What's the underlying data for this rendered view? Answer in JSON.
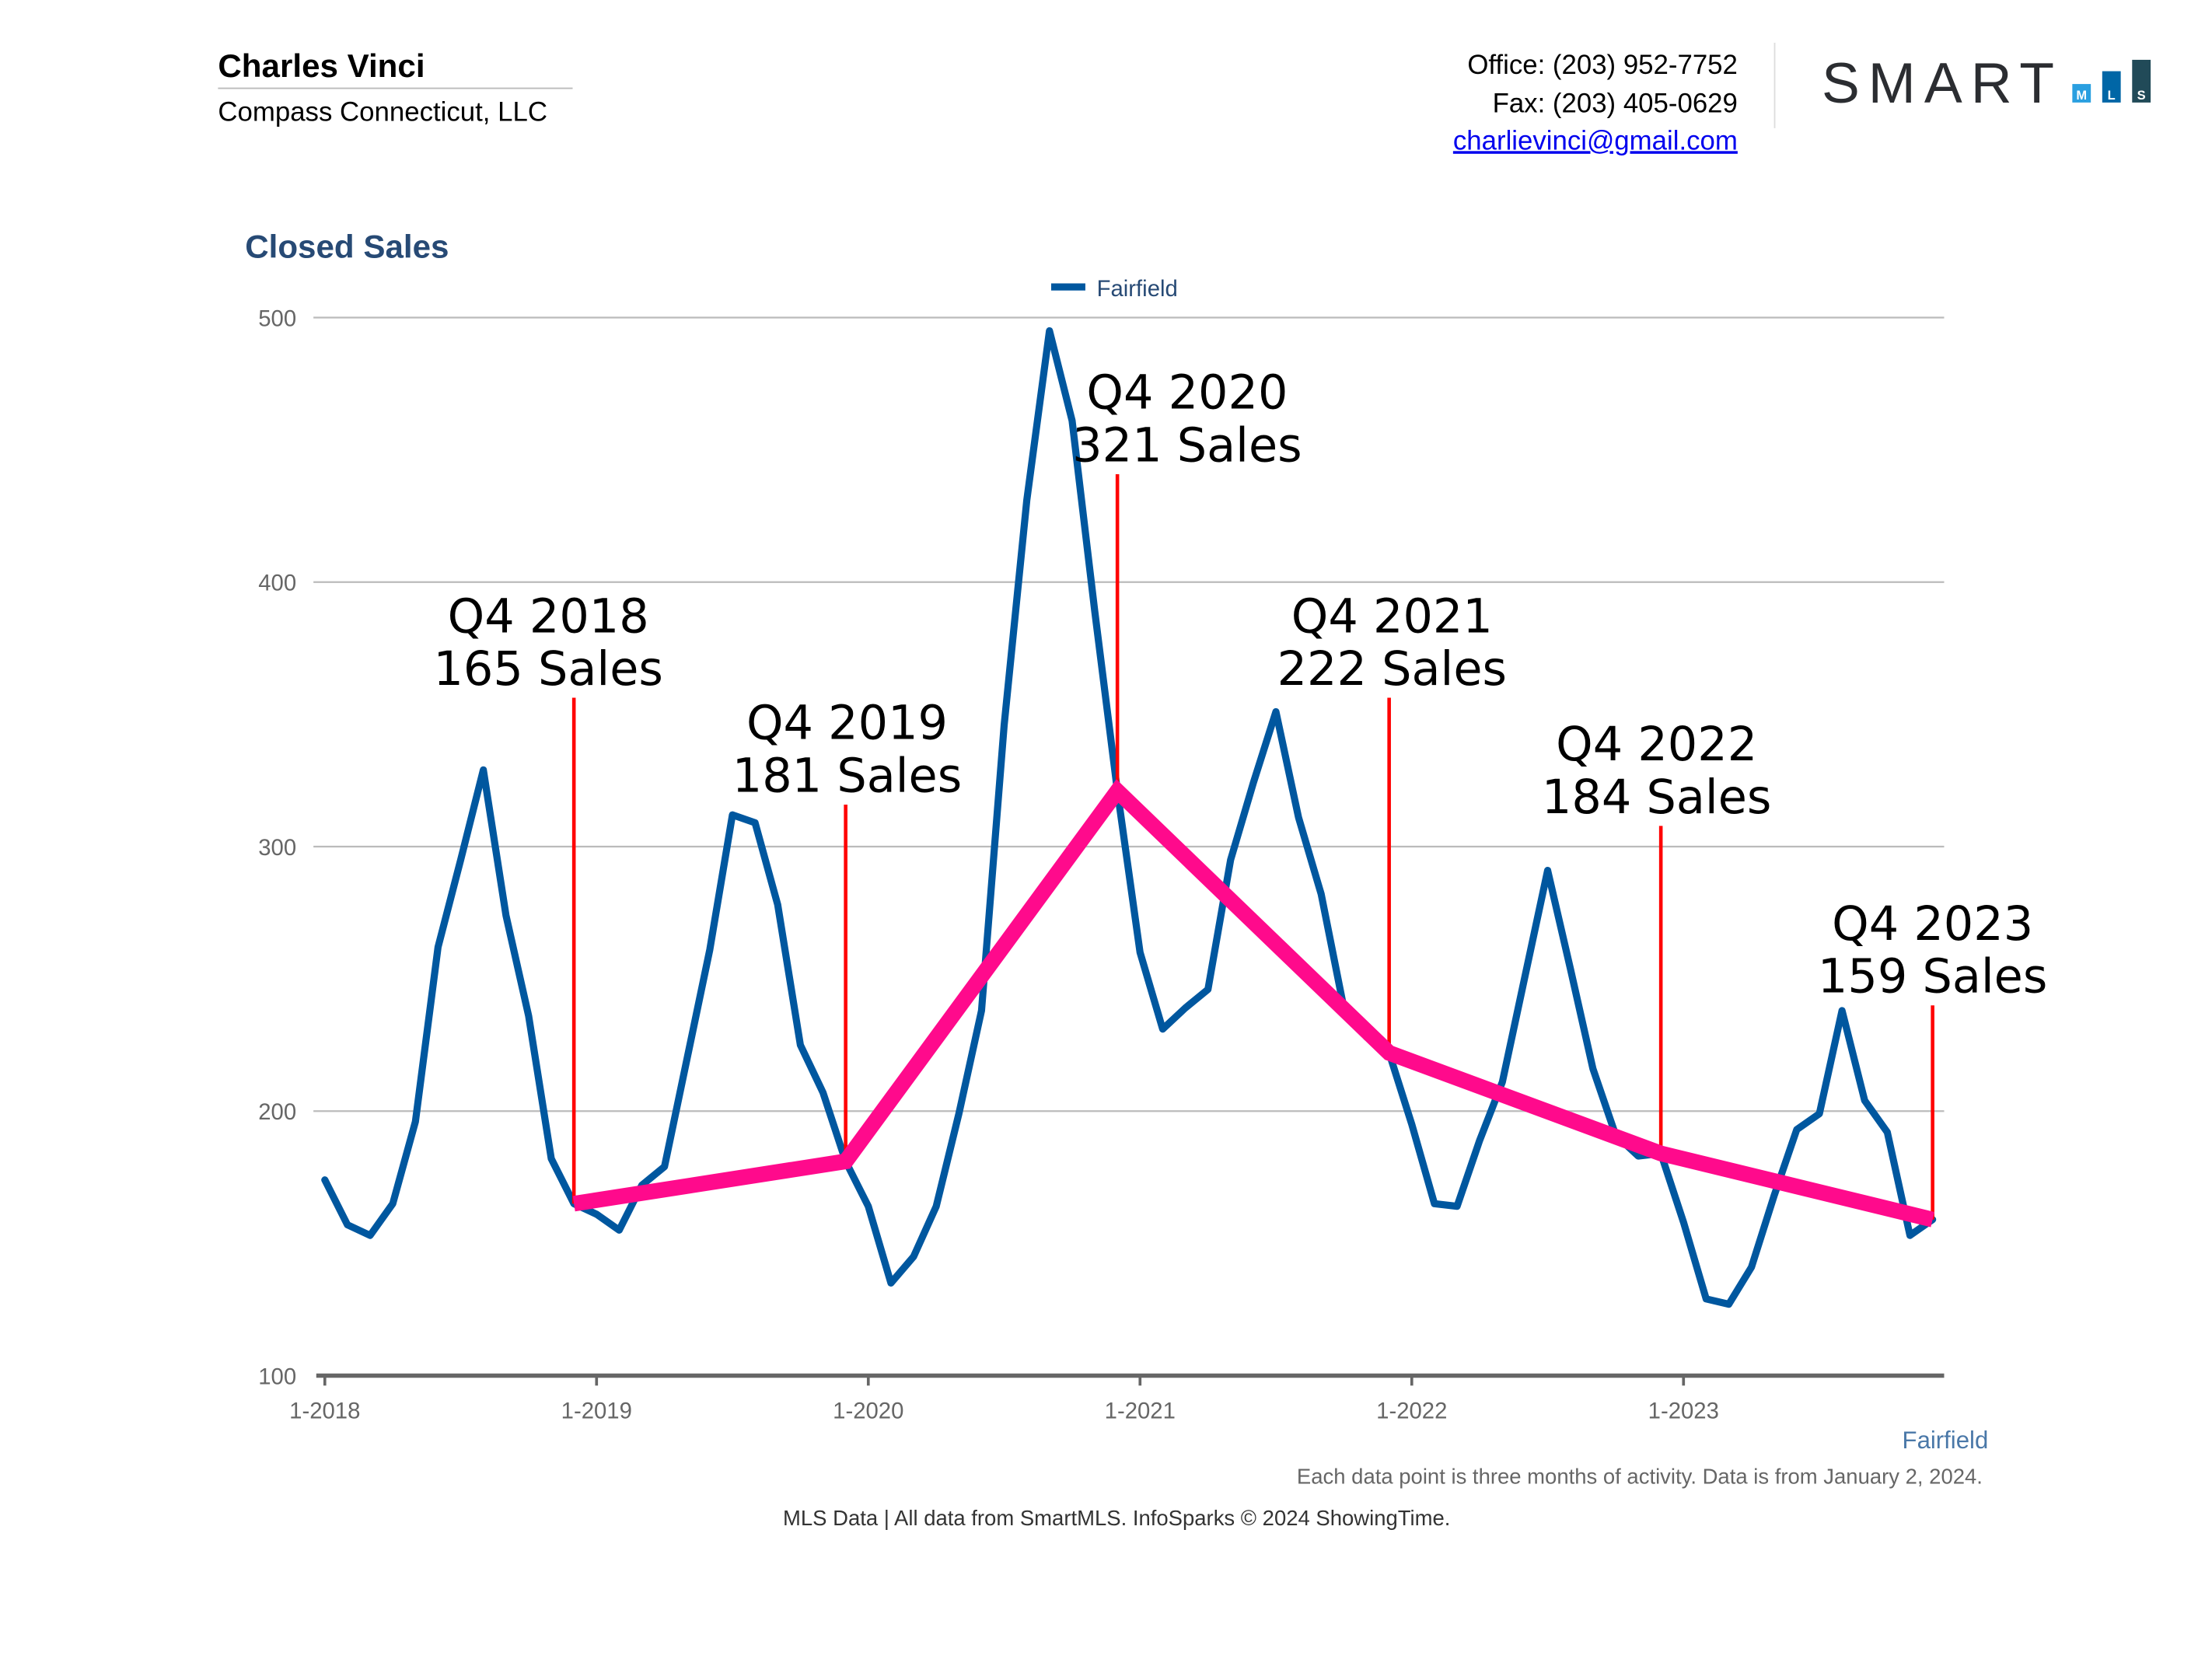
{
  "header": {
    "agent_name": "Charles Vinci",
    "company": "Compass Connecticut, LLC",
    "office": "Office: (203) 952-7752",
    "fax": "Fax: (203) 405-0629",
    "email": "charlievinci@gmail.com",
    "logo": {
      "text": "SMART",
      "boxes": [
        "M",
        "L",
        "S"
      ],
      "colors": [
        "#2b2d31",
        "#2a9fe0",
        "#0066a6",
        "#214a58"
      ]
    }
  },
  "footer": {
    "note": "Each data point is three months of activity. Data is from January 2, 2024.",
    "credit": "MLS Data | All data from SmartMLS. InfoSparks © 2024 ShowingTime."
  },
  "chart_data": {
    "type": "line",
    "title": "Closed Sales",
    "xlabel": "",
    "ylabel": "",
    "ylim": [
      100,
      500
    ],
    "yticks": [
      100,
      200,
      300,
      400,
      500
    ],
    "xticks": [
      "1-2018",
      "1-2019",
      "1-2020",
      "1-2021",
      "1-2022",
      "1-2023"
    ],
    "grid": true,
    "legend": {
      "placement": "top",
      "entries": [
        "Fairfield"
      ]
    },
    "bottom_label": "Fairfield",
    "colors": {
      "series": "#00579f",
      "trend": "#ff0a8c",
      "marker": "#ff0000",
      "title": "#274a75"
    },
    "series": [
      {
        "name": "Fairfield",
        "start": "2018-01",
        "values": [
          174,
          157,
          153,
          165,
          196,
          262,
          295,
          329,
          274,
          236,
          182,
          165,
          161,
          155,
          172,
          179,
          220,
          261,
          312,
          309,
          278,
          225,
          207,
          181,
          164,
          135,
          145,
          164,
          199,
          238,
          346,
          431,
          495,
          461,
          389,
          321,
          260,
          231,
          239,
          246,
          295,
          324,
          351,
          311,
          282,
          239,
          228,
          222,
          195,
          165,
          164,
          189,
          211,
          251,
          291,
          254,
          216,
          191,
          183,
          184,
          158,
          129,
          127,
          141,
          168,
          193,
          199,
          238,
          204,
          192,
          153,
          159
        ]
      }
    ],
    "trend": {
      "points": [
        {
          "period": "Q4 2018",
          "value": 165,
          "label1": "Q4 2018",
          "label2": "165 Sales"
        },
        {
          "period": "Q4 2019",
          "value": 181,
          "label1": "Q4 2019",
          "label2": "181 Sales"
        },
        {
          "period": "Q4 2020",
          "value": 321,
          "label1": "Q4 2020",
          "label2": "321 Sales"
        },
        {
          "period": "Q4 2021",
          "value": 222,
          "label1": "Q4 2021",
          "label2": "222 Sales"
        },
        {
          "period": "Q4 2022",
          "value": 184,
          "label1": "Q4 2022",
          "label2": "184 Sales"
        },
        {
          "period": "Q4 2023",
          "value": 159,
          "label1": "Q4 2023",
          "label2": "159 Sales"
        }
      ]
    }
  }
}
